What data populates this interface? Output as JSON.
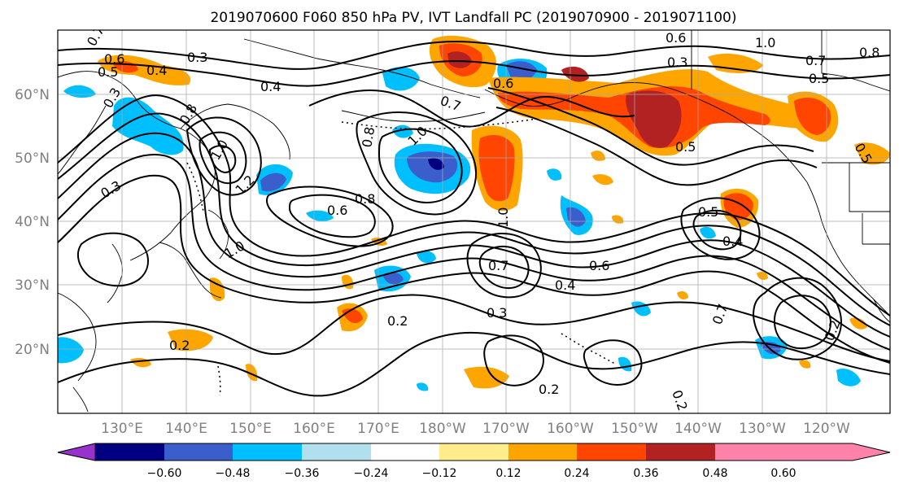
{
  "title": "2019070600 F060 850 hPa PV, IVT Landfall PC (2019070900 - 2019071100)",
  "map": {
    "lon_labels": [
      "130°E",
      "140°E",
      "150°E",
      "160°E",
      "170°E",
      "180°W",
      "170°W",
      "160°W",
      "150°W",
      "140°W",
      "130°W",
      "120°W"
    ],
    "lat_labels": [
      "60°N",
      "50°N",
      "40°N",
      "30°N",
      "20°N"
    ],
    "contour_labels": [
      "0.7",
      "0.6",
      "0.5",
      "0.4",
      "0.3",
      "0.3",
      "0.4",
      "0.8",
      "1.0",
      "1.2",
      "0.3",
      "0.7",
      "0.8",
      "1.0",
      "0.6",
      "0.6",
      "0.8",
      "1.0",
      "1.0",
      "0.3",
      "0.2",
      "0.2",
      "0.7",
      "0.6",
      "0.4",
      "0.3",
      "0.2",
      "0.5",
      "0.4",
      "0.7",
      "1.0",
      "0.5",
      "0.6",
      "0.8",
      "0.5",
      "0.7",
      "0.2",
      "0.2",
      "0.5"
    ]
  },
  "colorbar": {
    "colors": [
      "#9932cc",
      "#000080",
      "#3a5fcd",
      "#00bfff",
      "#b2dfee",
      "#ffffff",
      "#ffec8b",
      "#ffa500",
      "#ff4500",
      "#b22222",
      "#ff82ab"
    ],
    "tick_labels": [
      "−0.60",
      "−0.48",
      "−0.36",
      "−0.24",
      "−0.12",
      "0.12",
      "0.24",
      "0.36",
      "0.48",
      "0.60"
    ]
  },
  "legend_colors": {
    "neg_strong": "#3a5fcd",
    "neg_mid": "#00bfff",
    "neg_weak": "#b2dfee",
    "pos_weak": "#ffec8b",
    "pos_mid": "#ffa500",
    "pos_strong": "#ff4500",
    "pos_max": "#b22222",
    "neg_max": "#000080"
  }
}
